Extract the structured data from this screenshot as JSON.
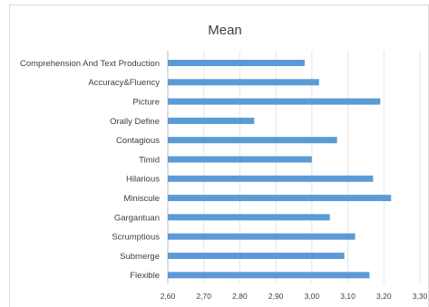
{
  "chart_data": {
    "type": "bar",
    "orientation": "horizontal",
    "title": "Mean",
    "categories": [
      "Comprehension And Text Production",
      "Accuracy&Fluency",
      "Picture",
      "Orally Define",
      "Contagious",
      "Timid",
      "Hilarious",
      "Miniscule",
      "Gargantuan",
      "Scrumptious",
      "Submerge",
      "Flexible"
    ],
    "values": [
      2.98,
      3.02,
      3.19,
      2.84,
      3.07,
      3.0,
      3.17,
      3.22,
      3.05,
      3.12,
      3.09,
      3.16
    ],
    "xlim": [
      2.6,
      3.3
    ],
    "ticks": [
      2.6,
      2.7,
      2.8,
      2.9,
      3.0,
      3.1,
      3.2,
      3.3
    ],
    "tick_labels": [
      "2,60",
      "2,70",
      "2,80",
      "2,90",
      "3,00",
      "3,10",
      "3,20",
      "3,30"
    ],
    "bar_color": "#5b9bd5",
    "grid": true,
    "legend": false
  }
}
